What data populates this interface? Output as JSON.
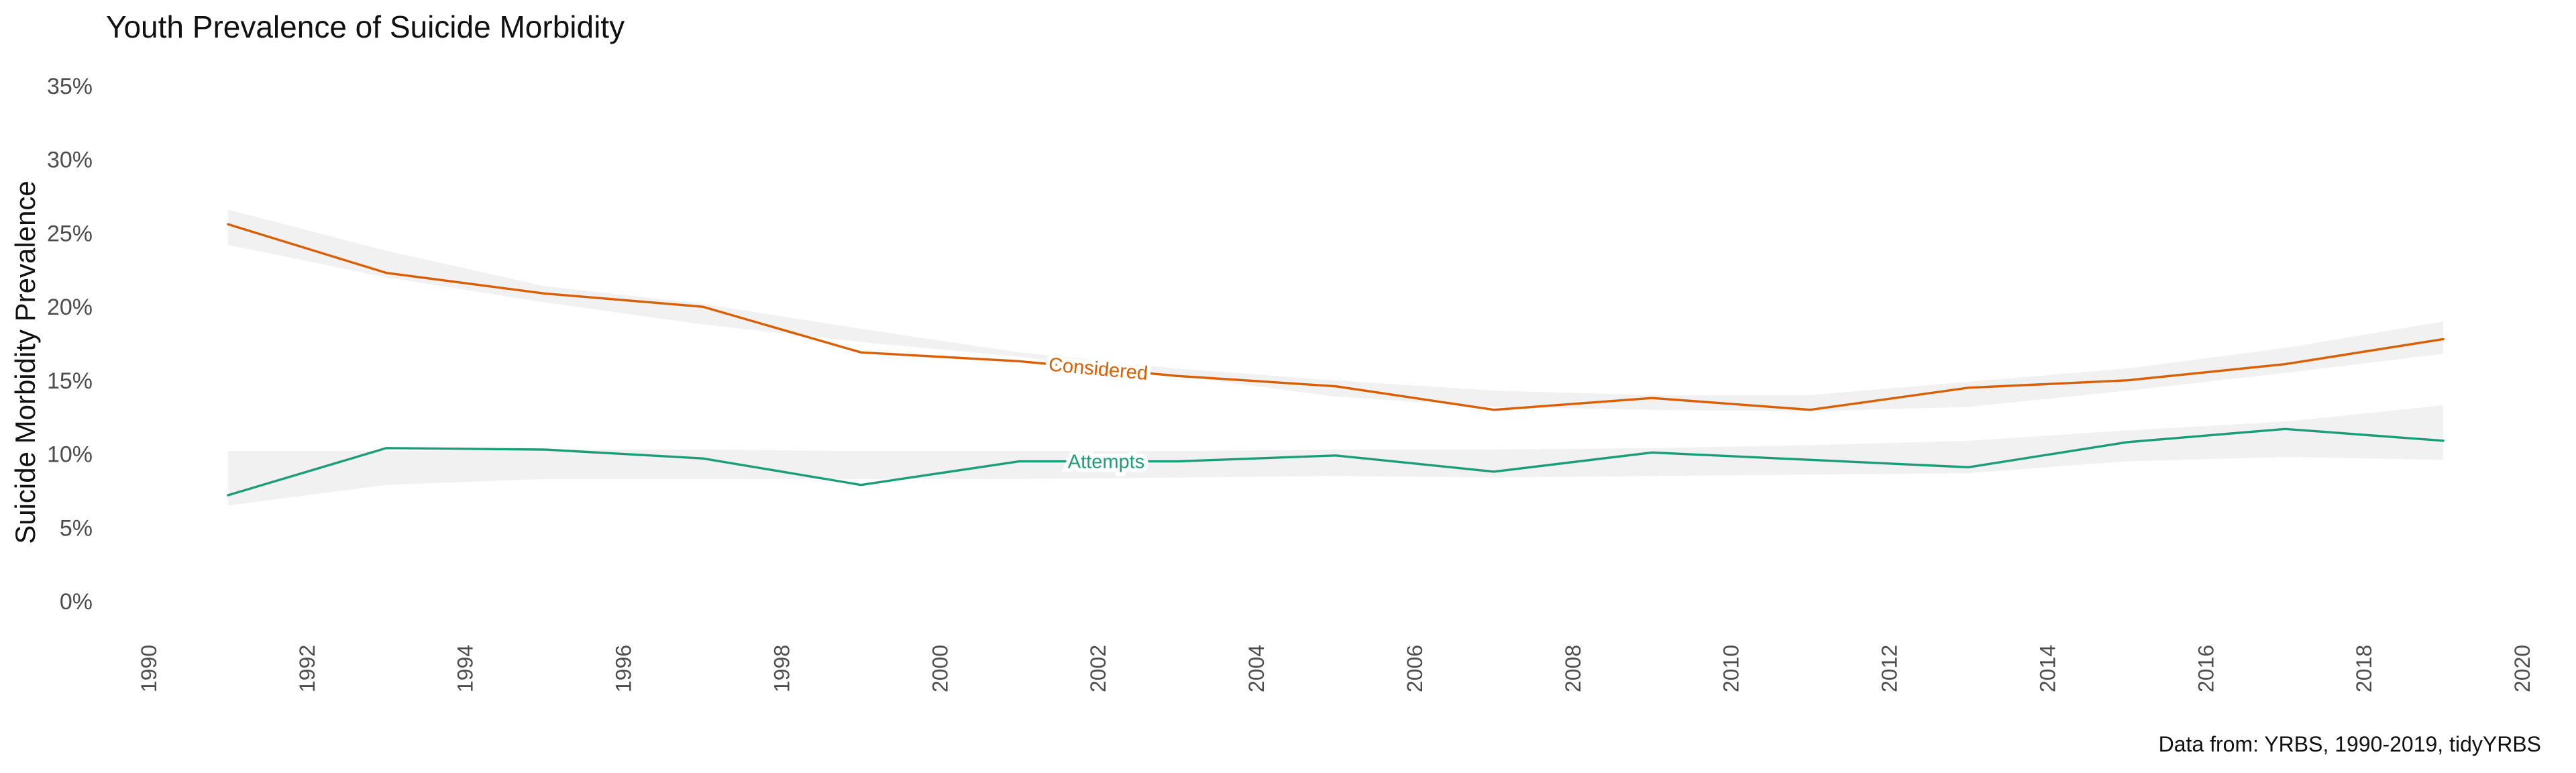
{
  "chart_data": {
    "type": "line",
    "title": "Youth Prevalence of Suicide Morbidity",
    "xlabel": "",
    "ylabel": "Suicide Morbidity Prevalence",
    "caption": "Data from: YRBS, 1990-2019, tidyYRBS",
    "xlim": [
      1990,
      2020
    ],
    "ylim": [
      0,
      35
    ],
    "x_ticks": [
      "1990",
      "1992",
      "1994",
      "1996",
      "1998",
      "2000",
      "2002",
      "2004",
      "2006",
      "2008",
      "2010",
      "2012",
      "2014",
      "2016",
      "2018",
      "2020"
    ],
    "y_ticks": [
      "0%",
      "5%",
      "10%",
      "15%",
      "20%",
      "25%",
      "30%",
      "35%"
    ],
    "grid": false,
    "legend": "none",
    "series": [
      {
        "name": "Considered",
        "color": "#d95f02",
        "x": [
          1991,
          1993,
          1995,
          1997,
          1999,
          2001,
          2003,
          2005,
          2007,
          2009,
          2011,
          2013,
          2015,
          2017,
          2019
        ],
        "values": [
          25.6,
          22.3,
          20.9,
          20.0,
          16.9,
          16.3,
          15.3,
          14.6,
          13.0,
          13.8,
          13.0,
          14.5,
          15.0,
          16.1,
          17.8
        ],
        "band_lower": [
          24.2,
          22.0,
          20.3,
          18.8,
          17.6,
          16.6,
          15.3,
          13.9,
          13.2,
          13.0,
          12.9,
          13.2,
          14.3,
          15.5,
          16.8
        ],
        "band_upper": [
          26.6,
          23.8,
          21.4,
          20.2,
          18.5,
          16.9,
          15.8,
          15.0,
          14.3,
          14.0,
          14.0,
          14.9,
          15.8,
          17.2,
          19.0
        ],
        "label_x": 2002
      },
      {
        "name": "Attempts",
        "color": "#1b9e77",
        "x": [
          1991,
          1993,
          1995,
          1997,
          1999,
          2001,
          2003,
          2005,
          2007,
          2009,
          2011,
          2013,
          2015,
          2017,
          2019
        ],
        "values": [
          7.2,
          10.4,
          10.3,
          9.7,
          7.9,
          9.5,
          9.5,
          9.9,
          8.8,
          10.1,
          9.6,
          9.1,
          10.8,
          11.7,
          10.9
        ],
        "band_lower": [
          6.5,
          7.9,
          8.3,
          8.3,
          8.3,
          8.3,
          8.4,
          8.5,
          8.4,
          8.5,
          8.6,
          8.7,
          9.5,
          9.8,
          9.6
        ],
        "band_upper": [
          10.2,
          10.2,
          10.3,
          10.3,
          10.2,
          10.2,
          10.2,
          10.3,
          10.3,
          10.4,
          10.6,
          10.9,
          11.6,
          12.2,
          13.3
        ],
        "label_x": 2002.1
      }
    ]
  },
  "colors": {
    "band_fill": "#d9d9d9",
    "axis_text": "#4d4d4d"
  }
}
